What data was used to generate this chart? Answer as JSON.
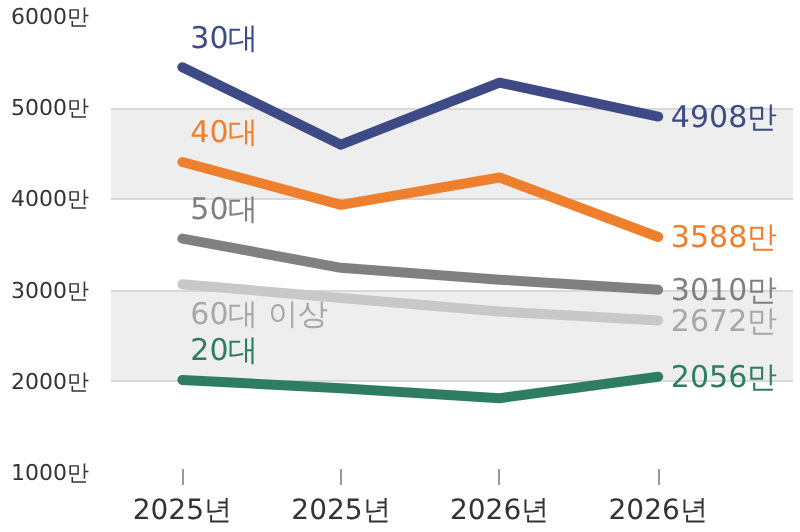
{
  "chart_data": {
    "type": "line",
    "categories": [
      "2025년",
      "2025년",
      "2026년",
      "2026년"
    ],
    "series": [
      {
        "name": "30대",
        "color": "#3d4a86",
        "values": [
          5450,
          4600,
          5280,
          4908
        ],
        "value_labels": [
          null,
          null,
          null,
          "4908만"
        ]
      },
      {
        "name": "40대",
        "color": "#ee7f2d",
        "values": [
          4410,
          3940,
          4240,
          3588
        ],
        "value_labels": [
          null,
          null,
          null,
          "3588만"
        ]
      },
      {
        "name": "50대",
        "color": "#808080",
        "values": [
          3570,
          3250,
          3120,
          3010
        ],
        "value_labels": [
          null,
          null,
          null,
          "3010만"
        ]
      },
      {
        "name": "60대 이상",
        "color": "#c8c8c8",
        "values": [
          3070,
          2920,
          2770,
          2672
        ],
        "value_labels": [
          null,
          null,
          null,
          "2672만"
        ]
      },
      {
        "name": "20대",
        "color": "#2e7d62",
        "values": [
          2020,
          1930,
          1820,
          2056
        ],
        "value_labels": [
          null,
          null,
          null,
          "2056만"
        ]
      }
    ],
    "ylim": [
      1000,
      6000
    ],
    "yticks": [
      {
        "value": 1000,
        "label": "1000만"
      },
      {
        "value": 2000,
        "label": "2000만"
      },
      {
        "value": 3000,
        "label": "3000만"
      },
      {
        "value": 4000,
        "label": "4000만"
      },
      {
        "value": 5000,
        "label": "5000만"
      },
      {
        "value": 6000,
        "label": "6000만"
      }
    ],
    "grid": "y",
    "marker": "none",
    "line_style": "solid"
  }
}
